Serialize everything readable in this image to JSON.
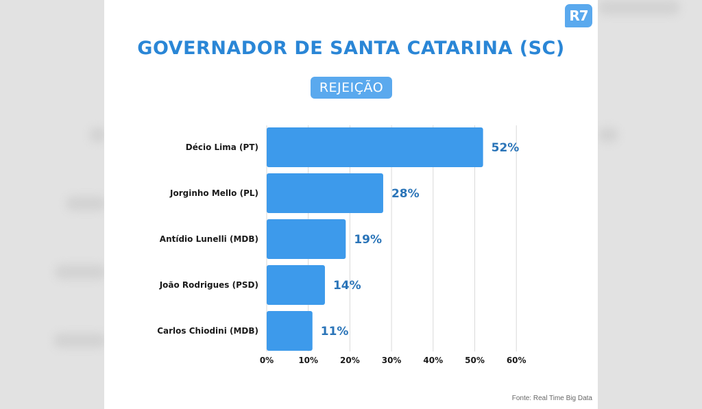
{
  "brand": {
    "logo_text": "R7"
  },
  "header": {
    "title": "GOVERNADOR DE SANTA CATARINA (SC)",
    "subtitle": "REJEIÇÃO"
  },
  "footer": {
    "source": "Fonte: Real Time Big Data"
  },
  "colors": {
    "bar": "#3d9aeb",
    "value_label": "#2a74b8",
    "title": "#2a86d6",
    "badge": "#5aa9ee",
    "grid": "#d9d9d9"
  },
  "chart_data": {
    "type": "bar",
    "orientation": "horizontal",
    "title": "GOVERNADOR DE SANTA CATARINA (SC)",
    "subtitle": "REJEIÇÃO",
    "categories": [
      "Décio Lima (PT)",
      "Jorginho Mello (PL)",
      "Antídio Lunelli (MDB)",
      "João Rodrigues (PSD)",
      "Carlos Chiodini (MDB)"
    ],
    "values": [
      52,
      28,
      19,
      14,
      11
    ],
    "value_labels": [
      "52%",
      "28%",
      "19%",
      "14%",
      "11%"
    ],
    "xlim": [
      0,
      60
    ],
    "xticks": [
      0,
      10,
      20,
      30,
      40,
      50,
      60
    ],
    "xtick_labels": [
      "0%",
      "10%",
      "20%",
      "30%",
      "40%",
      "50%",
      "60%"
    ],
    "grid": "vertical",
    "legend": "none"
  }
}
